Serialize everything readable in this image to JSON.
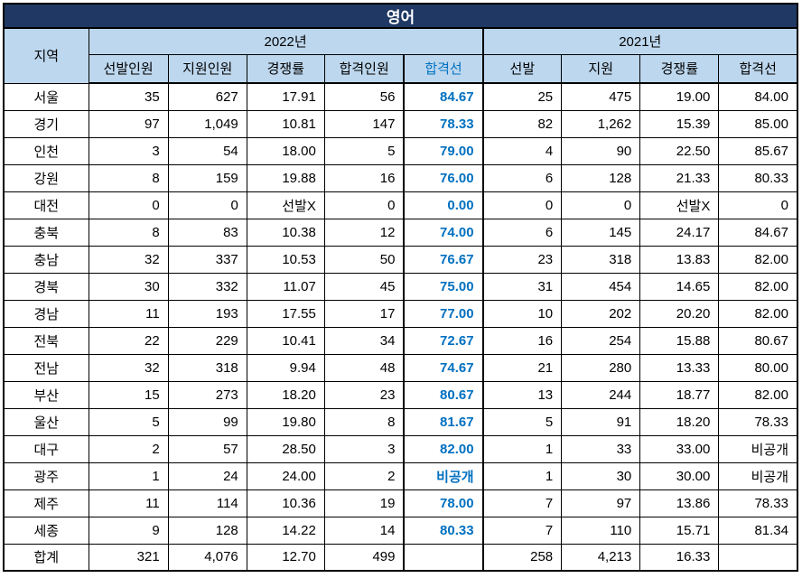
{
  "chart_data": {
    "type": "table",
    "title": "영어",
    "header": {
      "region": "지역",
      "groups": [
        {
          "label": "2022년",
          "span": 5
        },
        {
          "label": "2021년",
          "span": 4
        }
      ],
      "sub": [
        "선발인원",
        "지원인원",
        "경쟁률",
        "합격인원",
        "합격선",
        "선발",
        "지원",
        "경쟁률",
        "합격선"
      ]
    },
    "rows": [
      {
        "region": "서울",
        "v": [
          "35",
          "627",
          "17.91",
          "56",
          "84.67",
          "25",
          "475",
          "19.00",
          "84.00"
        ]
      },
      {
        "region": "경기",
        "v": [
          "97",
          "1,049",
          "10.81",
          "147",
          "78.33",
          "82",
          "1,262",
          "15.39",
          "85.00"
        ]
      },
      {
        "region": "인천",
        "v": [
          "3",
          "54",
          "18.00",
          "5",
          "79.00",
          "4",
          "90",
          "22.50",
          "85.67"
        ]
      },
      {
        "region": "강원",
        "v": [
          "8",
          "159",
          "19.88",
          "16",
          "76.00",
          "6",
          "128",
          "21.33",
          "80.33"
        ]
      },
      {
        "region": "대전",
        "v": [
          "0",
          "0",
          "선발X",
          "0",
          "0.00",
          "0",
          "0",
          "선발X",
          "0"
        ]
      },
      {
        "region": "충북",
        "v": [
          "8",
          "83",
          "10.38",
          "12",
          "74.00",
          "6",
          "145",
          "24.17",
          "84.67"
        ]
      },
      {
        "region": "충남",
        "v": [
          "32",
          "337",
          "10.53",
          "50",
          "76.67",
          "23",
          "318",
          "13.83",
          "82.00"
        ]
      },
      {
        "region": "경북",
        "v": [
          "30",
          "332",
          "11.07",
          "45",
          "75.00",
          "31",
          "454",
          "14.65",
          "82.00"
        ]
      },
      {
        "region": "경남",
        "v": [
          "11",
          "193",
          "17.55",
          "17",
          "77.00",
          "10",
          "202",
          "20.20",
          "82.00"
        ]
      },
      {
        "region": "전북",
        "v": [
          "22",
          "229",
          "10.41",
          "34",
          "72.67",
          "16",
          "254",
          "15.88",
          "80.67"
        ]
      },
      {
        "region": "전남",
        "v": [
          "32",
          "318",
          "9.94",
          "48",
          "74.67",
          "21",
          "280",
          "13.33",
          "80.00"
        ]
      },
      {
        "region": "부산",
        "v": [
          "15",
          "273",
          "18.20",
          "23",
          "80.67",
          "13",
          "244",
          "18.77",
          "82.00"
        ]
      },
      {
        "region": "울산",
        "v": [
          "5",
          "99",
          "19.80",
          "8",
          "81.67",
          "5",
          "91",
          "18.20",
          "78.33"
        ]
      },
      {
        "region": "대구",
        "v": [
          "2",
          "57",
          "28.50",
          "3",
          "82.00",
          "1",
          "33",
          "33.00",
          "비공개"
        ]
      },
      {
        "region": "광주",
        "v": [
          "1",
          "24",
          "24.00",
          "2",
          "비공개",
          "1",
          "30",
          "30.00",
          "비공개"
        ]
      },
      {
        "region": "제주",
        "v": [
          "11",
          "114",
          "10.36",
          "19",
          "78.00",
          "7",
          "97",
          "13.86",
          "78.33"
        ]
      },
      {
        "region": "세종",
        "v": [
          "9",
          "128",
          "14.22",
          "14",
          "80.33",
          "7",
          "110",
          "15.71",
          "81.34"
        ]
      },
      {
        "region": "합계",
        "v": [
          "321",
          "4,076",
          "12.70",
          "499",
          "",
          "258",
          "4,213",
          "16.33",
          ""
        ]
      }
    ],
    "layout": {
      "grid": true,
      "highlight_column": "합격선 2022",
      "no_selection_text": "선발X",
      "undisclosed_text": "비공개"
    }
  },
  "colors": {
    "title_bg": "#1f3864",
    "title_text": "#ffffff",
    "header_bg": "#bdd7ee",
    "cutoff_2022_text": "#0070c0",
    "border": "#000000",
    "cell_bg": "#ffffff"
  }
}
